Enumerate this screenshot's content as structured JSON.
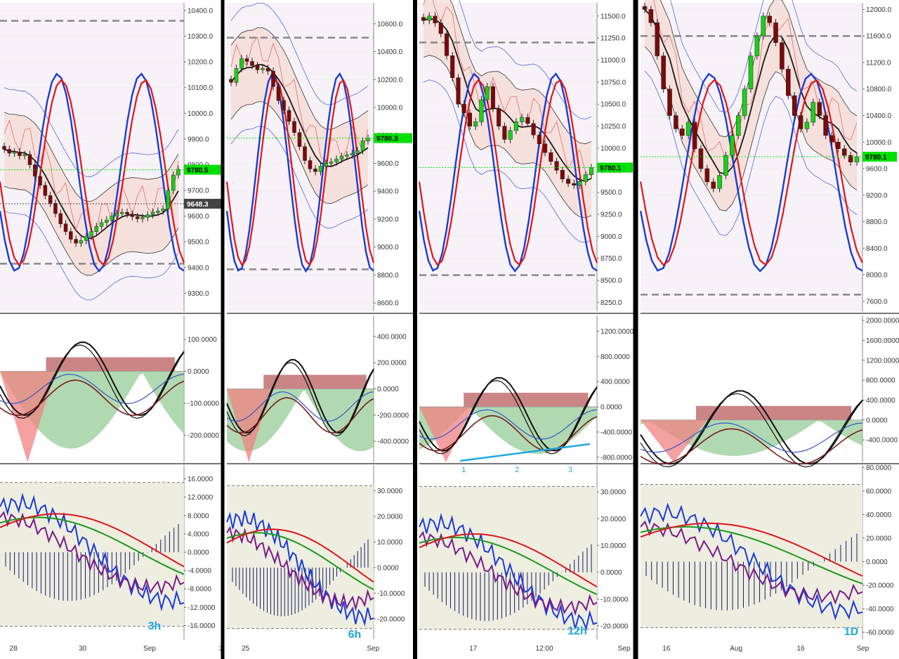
{
  "chart_data": [
    {
      "type": "candlestick",
      "timeframe": "3h",
      "price_axis": {
        "ticks": [
          "10400.0",
          "10300.0",
          "10200.0",
          "10100.0",
          "10000.0",
          "9900.0",
          "9800.0",
          "9700.0",
          "9600.0",
          "9500.0",
          "9400.0",
          "9300.0"
        ],
        "range": [
          9230,
          10430
        ]
      },
      "price_labels": [
        {
          "text": "9780.5",
          "value": 9780.5,
          "color": "#00e000"
        },
        {
          "text": "9648.3",
          "value": 9648.3,
          "color": "#444444"
        }
      ],
      "dashed_levels": [
        10360,
        9415
      ],
      "macd_axis": {
        "ticks": [
          "100.0000",
          "0.0000",
          "-100.0000",
          "-200.0000"
        ],
        "range": [
          -285,
          175
        ]
      },
      "osc_axis": {
        "ticks": [
          "16.0000",
          "12.0000",
          "8.0000",
          "4.0000",
          "0.0000",
          "-4.0000",
          "-8.0000",
          "-12.0000",
          "-16.0000"
        ],
        "range": [
          -19,
          19
        ]
      },
      "x_ticks": [
        "28",
        "30",
        "Sep",
        "3"
      ],
      "closes": [
        9860,
        9845,
        9850,
        9835,
        9840,
        9800,
        9755,
        9720,
        9680,
        9650,
        9610,
        9570,
        9540,
        9510,
        9495,
        9505,
        9520,
        9540,
        9560,
        9575,
        9585,
        9600,
        9610,
        9615,
        9608,
        9598,
        9590,
        9595,
        9605,
        9615,
        9620,
        9628,
        9700,
        9760,
        9782
      ]
    },
    {
      "type": "candlestick",
      "timeframe": "6h",
      "price_axis": {
        "ticks": [
          "10600.0",
          "10400.0",
          "10200.0",
          "10000.0",
          "9800.0",
          "9600.0",
          "9400.0",
          "9200.0",
          "9000.0",
          "8800.0",
          "8600.0"
        ],
        "range": [
          8540,
          10750
        ]
      },
      "price_labels": [
        {
          "text": "9780.3",
          "value": 9780.3,
          "color": "#00e000"
        }
      ],
      "dashed_levels": [
        10500,
        8840
      ],
      "macd_axis": {
        "ticks": [
          "400.0000",
          "200.0000",
          "0.0000",
          "-200.0000",
          "-400.0000"
        ],
        "range": [
          -560,
          560
        ]
      },
      "osc_axis": {
        "ticks": [
          "30.0000",
          "20.0000",
          "10.0000",
          "0.0000",
          "-10.0000",
          "-20.0000"
        ],
        "range": [
          -28,
          40
        ]
      },
      "x_ticks": [
        "25",
        "Sep"
      ],
      "closes": [
        10180,
        10280,
        10350,
        10330,
        10300,
        10270,
        10280,
        10260,
        10150,
        10050,
        9980,
        9900,
        9820,
        9720,
        9620,
        9560,
        9540,
        9580,
        9600,
        9610,
        9630,
        9650,
        9660,
        9670,
        9690,
        9760,
        9780
      ]
    },
    {
      "type": "candlestick",
      "timeframe": "12h",
      "price_axis": {
        "ticks": [
          "11500.0",
          "11250.0",
          "11000.0",
          "10750.0",
          "10500.0",
          "10250.0",
          "10000.0",
          "9750.0",
          "9500.0",
          "9250.0",
          "9000.0",
          "8750.0",
          "8500.0",
          "8250.0"
        ],
        "range": [
          8150,
          11650
        ]
      },
      "price_labels": [
        {
          "text": "9780.1",
          "value": 9780.1,
          "color": "#00e000"
        }
      ],
      "dashed_levels": [
        11200,
        8560
      ],
      "macd_axis": {
        "ticks": [
          "1200.0000",
          "800.0000",
          "400.0000",
          "0.0000",
          "-400.0000",
          "-800.0000"
        ],
        "range": [
          -880,
          1450
        ]
      },
      "osc_axis": {
        "ticks": [
          "30.0000",
          "20.0000",
          "10.0000",
          "0.0000",
          "-10.0000",
          "-20.0000"
        ],
        "range": [
          -25,
          40
        ]
      },
      "x_ticks": [
        "17",
        "12:00",
        "Sep"
      ],
      "wave_labels": [
        "1",
        "2",
        "3"
      ],
      "closes": [
        11450,
        11500,
        11420,
        11300,
        11050,
        10800,
        10500,
        10400,
        10250,
        10300,
        10550,
        10700,
        10450,
        10250,
        10100,
        10200,
        10300,
        10350,
        10280,
        10150,
        10050,
        9950,
        9850,
        9750,
        9650,
        9600,
        9580,
        9620,
        9700,
        9780
      ]
    },
    {
      "type": "candlestick",
      "timeframe": "1D",
      "price_axis": {
        "ticks": [
          "12000.0",
          "11600.0",
          "11200.0",
          "10800.0",
          "10400.0",
          "10000.0",
          "9600.0",
          "9200.0",
          "8800.0",
          "8400.0",
          "8000.0",
          "7600.0"
        ],
        "range": [
          7450,
          12100
        ]
      },
      "price_labels": [
        {
          "text": "9780.1",
          "value": 9780.1,
          "color": "#00e000"
        }
      ],
      "dashed_levels": [
        11600,
        7700
      ],
      "macd_axis": {
        "ticks": [
          "2000.0000",
          "1600.0000",
          "1200.0000",
          "800.0000",
          "400.0000",
          "0.0000",
          "-400.0000"
        ],
        "range": [
          -850,
          2100
        ]
      },
      "osc_axis": {
        "ticks": [
          "80.0000",
          "60.0000",
          "40.0000",
          "20.0000",
          "0.0000",
          "-20.0000",
          "-40.0000",
          "-60.0000"
        ],
        "range": [
          -66,
          82
        ]
      },
      "x_ticks": [
        "16",
        "Aug",
        "16",
        "Sep"
      ],
      "closes": [
        12000,
        11800,
        11300,
        10800,
        10400,
        10200,
        10100,
        10300,
        9900,
        9600,
        9400,
        9300,
        9500,
        9800,
        10100,
        10400,
        10800,
        11300,
        11600,
        11900,
        11800,
        11500,
        11100,
        10700,
        10400,
        10200,
        10300,
        10600,
        10400,
        10100,
        10000,
        9900,
        9800,
        9700,
        9780
      ]
    }
  ]
}
